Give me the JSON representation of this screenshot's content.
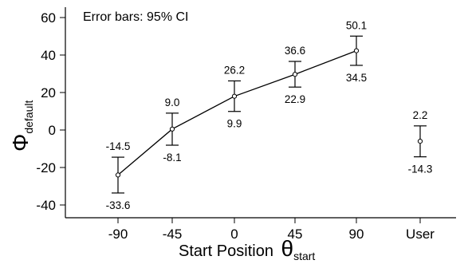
{
  "chart_data": {
    "type": "line",
    "annotation": "Error bars: 95% CI",
    "ylabel": {
      "symbol": "Φ",
      "subscript": "default"
    },
    "xlabel": {
      "text": "Start Position ",
      "symbol": "θ",
      "subscript": "start"
    },
    "categories": [
      "-90",
      "-45",
      "0",
      "45",
      "90",
      "User"
    ],
    "yticks": [
      -40,
      -20,
      0,
      20,
      40,
      60
    ],
    "ylim": [
      -45,
      65
    ],
    "grid": false,
    "series": [
      {
        "connected_categories": [
          "-90",
          "-45",
          "0",
          "45",
          "90"
        ],
        "points": [
          {
            "category": "-90",
            "mean": -24,
            "ci_high": -14.5,
            "ci_low": -33.6
          },
          {
            "category": "-45",
            "mean": 0.5,
            "ci_high": 9.0,
            "ci_low": -8.1
          },
          {
            "category": "0",
            "mean": 18,
            "ci_high": 26.2,
            "ci_low": 9.9
          },
          {
            "category": "45",
            "mean": 29.7,
            "ci_high": 36.6,
            "ci_low": 22.9
          },
          {
            "category": "90",
            "mean": 42.3,
            "ci_high": 50.1,
            "ci_low": 34.5
          },
          {
            "category": "User",
            "mean": -6,
            "ci_high": 2.2,
            "ci_low": -14.3
          }
        ]
      }
    ],
    "labels_high": [
      "-14.5",
      "9.0",
      "26.2",
      "36.6",
      "50.1",
      "2.2"
    ],
    "labels_low": [
      "-33.6",
      "-8.1",
      "9.9",
      "22.9",
      "34.5",
      "-14.3"
    ]
  }
}
